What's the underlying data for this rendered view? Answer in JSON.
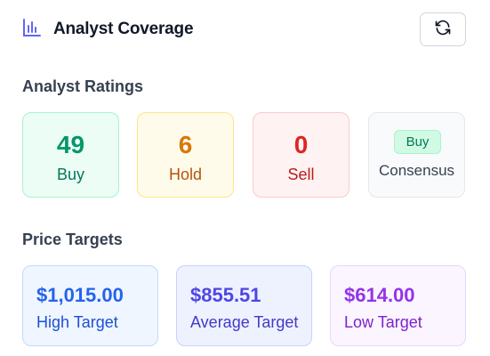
{
  "header": {
    "title": "Analyst Coverage",
    "icon": "bar-chart-icon",
    "refresh_icon": "refresh-icon"
  },
  "ratings": {
    "title": "Analyst Ratings",
    "buy": {
      "count": "49",
      "label": "Buy"
    },
    "hold": {
      "count": "6",
      "label": "Hold"
    },
    "sell": {
      "count": "0",
      "label": "Sell"
    },
    "consensus": {
      "value": "Buy",
      "label": "Consensus"
    }
  },
  "targets": {
    "title": "Price Targets",
    "high": {
      "value": "$1,015.00",
      "label": "High Target"
    },
    "average": {
      "value": "$855.51",
      "label": "Average Target"
    },
    "low": {
      "value": "$614.00",
      "label": "Low Target"
    }
  },
  "colors": {
    "accent": "#6366f1",
    "buy": "#059669",
    "hold": "#d97706",
    "sell": "#dc2626",
    "high": "#2563eb",
    "average": "#4f46e5",
    "low": "#9333ea"
  }
}
